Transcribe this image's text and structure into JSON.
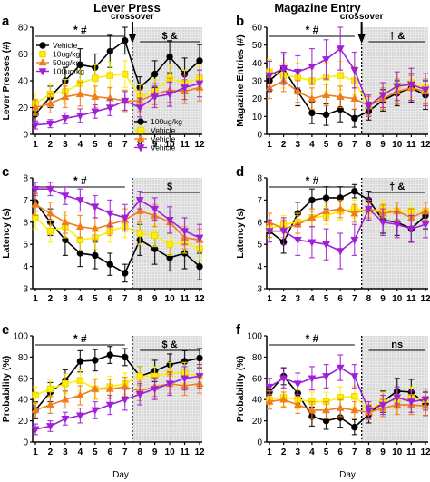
{
  "column_titles": [
    "Lever Press",
    "Magazine Entry"
  ],
  "xlabel": "Day",
  "x_days": [
    1,
    2,
    3,
    4,
    5,
    6,
    7,
    8,
    9,
    10,
    11,
    12
  ],
  "crossover_label": "crossover",
  "legend_a_title": "",
  "colors": {
    "black": "#000000",
    "yellow": "#ffee00",
    "orange": "#f07d1b",
    "purple": "#a020d8"
  },
  "legend_a": [
    {
      "name": "Vehicle",
      "color": "#000000",
      "marker": "circle"
    },
    {
      "name": "10ug/kg",
      "color": "#ffee00",
      "marker": "square"
    },
    {
      "name": "50ug/kg",
      "color": "#f07d1b",
      "marker": "triangle-up"
    },
    {
      "name": "100ug/kg",
      "color": "#a020d8",
      "marker": "triangle-down"
    }
  ],
  "legend_a2": [
    {
      "name": "100ug/kg",
      "color": "#000000",
      "marker": "circle"
    },
    {
      "name": "Vehicle",
      "color": "#ffee00",
      "marker": "square"
    },
    {
      "name": "Vehicle",
      "color": "#f07d1b",
      "marker": "triangle-up"
    },
    {
      "name": "Vehicle",
      "color": "#a020d8",
      "marker": "triangle-down"
    }
  ],
  "chart_data": [
    {
      "panel": "a",
      "type": "line",
      "ylabel": "Lever Presses (#)",
      "ylim": [
        0,
        80
      ],
      "yticks": [
        0,
        20,
        40,
        60,
        80
      ],
      "x": [
        1,
        2,
        3,
        4,
        5,
        6,
        7,
        8,
        9,
        10,
        11,
        12
      ],
      "annotation_left": "* #",
      "annotation_right": "$ &",
      "series": [
        {
          "color": "#000000",
          "marker": "circle",
          "values": [
            15,
            28,
            40,
            52,
            50,
            62,
            70,
            35,
            45,
            58,
            45,
            55
          ],
          "err": [
            7,
            8,
            10,
            12,
            10,
            12,
            10,
            8,
            10,
            12,
            12,
            12
          ]
        },
        {
          "color": "#ffee00",
          "marker": "square",
          "values": [
            23,
            30,
            32,
            38,
            42,
            44,
            45,
            28,
            32,
            42,
            38,
            42
          ],
          "err": [
            8,
            8,
            9,
            10,
            10,
            10,
            10,
            9,
            9,
            10,
            10,
            10
          ]
        },
        {
          "color": "#f07d1b",
          "marker": "triangle-up",
          "values": [
            20,
            23,
            28,
            30,
            28,
            27,
            25,
            25,
            30,
            33,
            32,
            35
          ],
          "err": [
            6,
            7,
            8,
            9,
            8,
            8,
            8,
            8,
            8,
            9,
            9,
            10
          ]
        },
        {
          "color": "#a020d8",
          "marker": "triangle-down",
          "values": [
            7,
            8,
            12,
            14,
            17,
            20,
            25,
            20,
            28,
            30,
            35,
            38
          ],
          "err": [
            3,
            3,
            4,
            5,
            5,
            6,
            7,
            7,
            8,
            9,
            9,
            10
          ]
        }
      ]
    },
    {
      "panel": "b",
      "type": "line",
      "ylabel": "Magazine Entries (#)",
      "ylim": [
        0,
        60
      ],
      "yticks": [
        0,
        10,
        20,
        30,
        40,
        50,
        60
      ],
      "x": [
        1,
        2,
        3,
        4,
        5,
        6,
        7,
        8,
        9,
        10,
        11,
        12
      ],
      "annotation_left": "* #",
      "annotation_right": "† &",
      "series": [
        {
          "color": "#000000",
          "marker": "circle",
          "values": [
            30,
            37,
            24,
            12,
            11,
            14,
            9,
            13,
            19,
            23,
            26,
            22
          ],
          "err": [
            6,
            8,
            8,
            6,
            6,
            7,
            5,
            5,
            6,
            7,
            8,
            8
          ]
        },
        {
          "color": "#ffee00",
          "marker": "square",
          "values": [
            35,
            33,
            32,
            30,
            32,
            33,
            30,
            16,
            22,
            27,
            29,
            26
          ],
          "err": [
            7,
            7,
            8,
            7,
            8,
            8,
            8,
            6,
            7,
            8,
            8,
            8
          ]
        },
        {
          "color": "#f07d1b",
          "marker": "triangle-up",
          "values": [
            26,
            30,
            24,
            20,
            22,
            21,
            20,
            16,
            20,
            24,
            26,
            24
          ],
          "err": [
            6,
            6,
            6,
            6,
            6,
            6,
            6,
            5,
            6,
            7,
            7,
            7
          ]
        },
        {
          "color": "#a020d8",
          "marker": "triangle-down",
          "values": [
            33,
            37,
            35,
            38,
            42,
            48,
            36,
            16,
            22,
            27,
            28,
            25
          ],
          "err": [
            8,
            9,
            9,
            10,
            11,
            12,
            10,
            6,
            7,
            8,
            9,
            9
          ]
        }
      ]
    },
    {
      "panel": "c",
      "type": "line",
      "ylabel": "Latency (s)",
      "ylim": [
        3,
        8
      ],
      "yticks": [
        3,
        4,
        5,
        6,
        7,
        8
      ],
      "x": [
        1,
        2,
        3,
        4,
        5,
        6,
        7,
        8,
        9,
        10,
        11,
        12
      ],
      "annotation_left": "* #",
      "annotation_right": "$",
      "series": [
        {
          "color": "#000000",
          "marker": "circle",
          "values": [
            6.9,
            6.0,
            5.2,
            4.6,
            4.5,
            4.1,
            3.7,
            5.2,
            4.8,
            4.4,
            4.6,
            4.0
          ],
          "err": [
            0.4,
            0.6,
            0.7,
            0.6,
            0.6,
            0.5,
            0.4,
            0.7,
            0.7,
            0.6,
            0.7,
            0.6
          ]
        },
        {
          "color": "#ffee00",
          "marker": "square",
          "values": [
            6.2,
            5.6,
            5.8,
            5.2,
            5.3,
            5.6,
            5.8,
            5.5,
            5.4,
            5.0,
            5.1,
            4.8
          ],
          "err": [
            0.5,
            0.5,
            0.5,
            0.5,
            0.5,
            0.5,
            0.5,
            0.5,
            0.5,
            0.5,
            0.5,
            0.5
          ]
        },
        {
          "color": "#f07d1b",
          "marker": "triangle-up",
          "values": [
            6.8,
            6.4,
            6.0,
            5.8,
            5.7,
            5.9,
            6.1,
            6.5,
            6.3,
            6.0,
            5.3,
            5.2
          ],
          "err": [
            0.5,
            0.5,
            0.5,
            0.5,
            0.5,
            0.5,
            0.5,
            0.5,
            0.5,
            0.5,
            0.5,
            0.5
          ]
        },
        {
          "color": "#a020d8",
          "marker": "triangle-down",
          "values": [
            7.5,
            7.5,
            7.2,
            7.0,
            6.7,
            6.4,
            6.2,
            7.0,
            6.6,
            6.1,
            5.6,
            5.3
          ],
          "err": [
            0.3,
            0.3,
            0.4,
            0.5,
            0.5,
            0.6,
            0.6,
            0.4,
            0.5,
            0.6,
            0.6,
            0.6
          ]
        }
      ]
    },
    {
      "panel": "d",
      "type": "line",
      "ylabel": "Latency (s)",
      "ylim": [
        3,
        8
      ],
      "yticks": [
        3,
        4,
        5,
        6,
        7,
        8
      ],
      "x": [
        1,
        2,
        3,
        4,
        5,
        6,
        7,
        8,
        9,
        10,
        11,
        12
      ],
      "annotation_left": "* #",
      "annotation_right": "† &",
      "series": [
        {
          "color": "#000000",
          "marker": "circle",
          "values": [
            5.6,
            5.1,
            6.4,
            7.0,
            7.1,
            7.1,
            7.4,
            7.0,
            6.1,
            6.0,
            5.7,
            6.3
          ],
          "err": [
            0.3,
            0.5,
            0.5,
            0.5,
            0.5,
            0.5,
            0.3,
            0.4,
            0.6,
            0.6,
            0.6,
            0.6
          ]
        },
        {
          "color": "#ffee00",
          "marker": "square",
          "values": [
            5.7,
            5.9,
            6.0,
            6.2,
            6.3,
            6.5,
            6.6,
            6.5,
            6.6,
            6.5,
            6.5,
            6.5
          ],
          "err": [
            0.4,
            0.4,
            0.4,
            0.4,
            0.4,
            0.4,
            0.4,
            0.4,
            0.4,
            0.4,
            0.4,
            0.4
          ]
        },
        {
          "color": "#f07d1b",
          "marker": "triangle-up",
          "values": [
            6.0,
            5.7,
            5.9,
            6.2,
            6.5,
            6.6,
            6.4,
            6.6,
            6.4,
            6.5,
            6.2,
            6.5
          ],
          "err": [
            0.4,
            0.4,
            0.4,
            0.4,
            0.4,
            0.4,
            0.4,
            0.4,
            0.4,
            0.4,
            0.4,
            0.4
          ]
        },
        {
          "color": "#a020d8",
          "marker": "triangle-down",
          "values": [
            5.6,
            5.6,
            5.2,
            5.1,
            5.0,
            4.7,
            5.2,
            6.6,
            6.0,
            5.9,
            5.7,
            5.9
          ],
          "err": [
            0.5,
            0.6,
            0.7,
            0.7,
            0.7,
            0.8,
            0.7,
            0.5,
            0.6,
            0.6,
            0.6,
            0.6
          ]
        }
      ]
    },
    {
      "panel": "e",
      "type": "line",
      "ylabel": "Probability (%)",
      "ylim": [
        0,
        100
      ],
      "yticks": [
        0,
        20,
        40,
        60,
        80,
        100
      ],
      "x": [
        1,
        2,
        3,
        4,
        5,
        6,
        7,
        8,
        9,
        10,
        11,
        12
      ],
      "annotation_left": "* #",
      "annotation_right": "$ &",
      "series": [
        {
          "color": "#000000",
          "marker": "circle",
          "values": [
            30,
            47,
            58,
            76,
            77,
            82,
            80,
            62,
            67,
            73,
            76,
            79
          ],
          "err": [
            8,
            9,
            10,
            10,
            10,
            8,
            8,
            9,
            10,
            10,
            10,
            9
          ]
        },
        {
          "color": "#ffee00",
          "marker": "square",
          "values": [
            44,
            50,
            55,
            58,
            50,
            52,
            55,
            62,
            62,
            65,
            65,
            62
          ],
          "err": [
            8,
            8,
            9,
            10,
            10,
            10,
            10,
            9,
            9,
            10,
            10,
            10
          ]
        },
        {
          "color": "#f07d1b",
          "marker": "triangle-up",
          "values": [
            30,
            35,
            40,
            44,
            50,
            50,
            52,
            48,
            52,
            55,
            53,
            55
          ],
          "err": [
            7,
            8,
            8,
            9,
            9,
            9,
            9,
            9,
            9,
            9,
            9,
            9
          ]
        },
        {
          "color": "#a020d8",
          "marker": "triangle-down",
          "values": [
            12,
            15,
            22,
            25,
            30,
            35,
            40,
            45,
            50,
            55,
            60,
            62
          ],
          "err": [
            5,
            5,
            6,
            7,
            8,
            9,
            10,
            10,
            10,
            11,
            11,
            11
          ]
        }
      ]
    },
    {
      "panel": "f",
      "type": "line",
      "ylabel": "Probability (%)",
      "ylim": [
        0,
        100
      ],
      "yticks": [
        0,
        20,
        40,
        60,
        80,
        100
      ],
      "x": [
        1,
        2,
        3,
        4,
        5,
        6,
        7,
        8,
        9,
        10,
        11,
        12
      ],
      "annotation_left": "* #",
      "annotation_right": "ns",
      "series": [
        {
          "color": "#000000",
          "marker": "circle",
          "values": [
            47,
            62,
            46,
            24,
            20,
            23,
            14,
            26,
            38,
            48,
            47,
            36
          ],
          "err": [
            7,
            8,
            10,
            9,
            8,
            9,
            7,
            8,
            10,
            12,
            12,
            11
          ]
        },
        {
          "color": "#ffee00",
          "marker": "square",
          "values": [
            40,
            42,
            40,
            38,
            38,
            42,
            43,
            30,
            38,
            40,
            42,
            40
          ],
          "err": [
            8,
            8,
            9,
            9,
            9,
            10,
            10,
            8,
            9,
            10,
            10,
            10
          ]
        },
        {
          "color": "#f07d1b",
          "marker": "triangle-up",
          "values": [
            38,
            40,
            35,
            30,
            30,
            32,
            30,
            28,
            32,
            35,
            35,
            34
          ],
          "err": [
            7,
            7,
            8,
            8,
            8,
            8,
            8,
            7,
            8,
            9,
            9,
            9
          ]
        },
        {
          "color": "#a020d8",
          "marker": "triangle-down",
          "values": [
            52,
            60,
            55,
            60,
            62,
            70,
            62,
            30,
            35,
            42,
            38,
            40
          ],
          "err": [
            8,
            9,
            10,
            11,
            11,
            12,
            11,
            8,
            9,
            10,
            10,
            10
          ]
        }
      ]
    }
  ]
}
